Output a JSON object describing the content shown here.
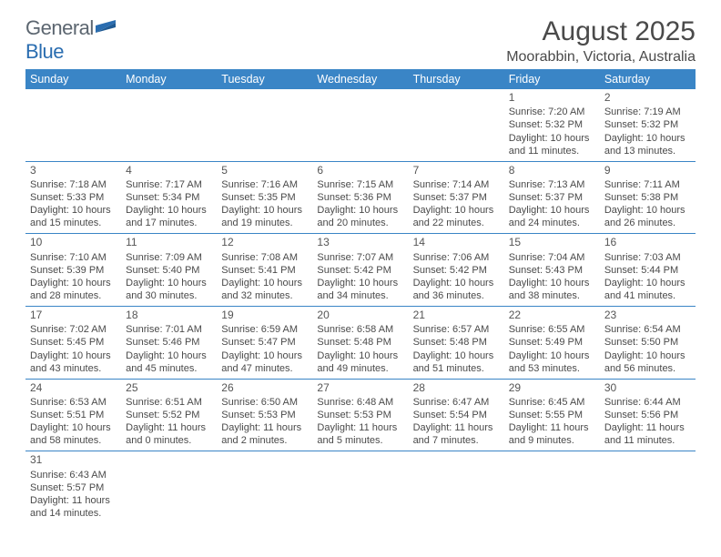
{
  "logo": {
    "text_gray": "General",
    "text_blue": "Blue",
    "flag_color": "#2a6db0"
  },
  "title": "August 2025",
  "location": "Moorabbin, Victoria, Australia",
  "header_bg": "#3a85c6",
  "header_text": "#ffffff",
  "border_color": "#3a85c6",
  "cell_text_color": "#4a4a4a",
  "weekdays": [
    "Sunday",
    "Monday",
    "Tuesday",
    "Wednesday",
    "Thursday",
    "Friday",
    "Saturday"
  ],
  "weeks": [
    [
      null,
      null,
      null,
      null,
      null,
      {
        "n": "1",
        "sunrise": "Sunrise: 7:20 AM",
        "sunset": "Sunset: 5:32 PM",
        "day1": "Daylight: 10 hours",
        "day2": "and 11 minutes."
      },
      {
        "n": "2",
        "sunrise": "Sunrise: 7:19 AM",
        "sunset": "Sunset: 5:32 PM",
        "day1": "Daylight: 10 hours",
        "day2": "and 13 minutes."
      }
    ],
    [
      {
        "n": "3",
        "sunrise": "Sunrise: 7:18 AM",
        "sunset": "Sunset: 5:33 PM",
        "day1": "Daylight: 10 hours",
        "day2": "and 15 minutes."
      },
      {
        "n": "4",
        "sunrise": "Sunrise: 7:17 AM",
        "sunset": "Sunset: 5:34 PM",
        "day1": "Daylight: 10 hours",
        "day2": "and 17 minutes."
      },
      {
        "n": "5",
        "sunrise": "Sunrise: 7:16 AM",
        "sunset": "Sunset: 5:35 PM",
        "day1": "Daylight: 10 hours",
        "day2": "and 19 minutes."
      },
      {
        "n": "6",
        "sunrise": "Sunrise: 7:15 AM",
        "sunset": "Sunset: 5:36 PM",
        "day1": "Daylight: 10 hours",
        "day2": "and 20 minutes."
      },
      {
        "n": "7",
        "sunrise": "Sunrise: 7:14 AM",
        "sunset": "Sunset: 5:37 PM",
        "day1": "Daylight: 10 hours",
        "day2": "and 22 minutes."
      },
      {
        "n": "8",
        "sunrise": "Sunrise: 7:13 AM",
        "sunset": "Sunset: 5:37 PM",
        "day1": "Daylight: 10 hours",
        "day2": "and 24 minutes."
      },
      {
        "n": "9",
        "sunrise": "Sunrise: 7:11 AM",
        "sunset": "Sunset: 5:38 PM",
        "day1": "Daylight: 10 hours",
        "day2": "and 26 minutes."
      }
    ],
    [
      {
        "n": "10",
        "sunrise": "Sunrise: 7:10 AM",
        "sunset": "Sunset: 5:39 PM",
        "day1": "Daylight: 10 hours",
        "day2": "and 28 minutes."
      },
      {
        "n": "11",
        "sunrise": "Sunrise: 7:09 AM",
        "sunset": "Sunset: 5:40 PM",
        "day1": "Daylight: 10 hours",
        "day2": "and 30 minutes."
      },
      {
        "n": "12",
        "sunrise": "Sunrise: 7:08 AM",
        "sunset": "Sunset: 5:41 PM",
        "day1": "Daylight: 10 hours",
        "day2": "and 32 minutes."
      },
      {
        "n": "13",
        "sunrise": "Sunrise: 7:07 AM",
        "sunset": "Sunset: 5:42 PM",
        "day1": "Daylight: 10 hours",
        "day2": "and 34 minutes."
      },
      {
        "n": "14",
        "sunrise": "Sunrise: 7:06 AM",
        "sunset": "Sunset: 5:42 PM",
        "day1": "Daylight: 10 hours",
        "day2": "and 36 minutes."
      },
      {
        "n": "15",
        "sunrise": "Sunrise: 7:04 AM",
        "sunset": "Sunset: 5:43 PM",
        "day1": "Daylight: 10 hours",
        "day2": "and 38 minutes."
      },
      {
        "n": "16",
        "sunrise": "Sunrise: 7:03 AM",
        "sunset": "Sunset: 5:44 PM",
        "day1": "Daylight: 10 hours",
        "day2": "and 41 minutes."
      }
    ],
    [
      {
        "n": "17",
        "sunrise": "Sunrise: 7:02 AM",
        "sunset": "Sunset: 5:45 PM",
        "day1": "Daylight: 10 hours",
        "day2": "and 43 minutes."
      },
      {
        "n": "18",
        "sunrise": "Sunrise: 7:01 AM",
        "sunset": "Sunset: 5:46 PM",
        "day1": "Daylight: 10 hours",
        "day2": "and 45 minutes."
      },
      {
        "n": "19",
        "sunrise": "Sunrise: 6:59 AM",
        "sunset": "Sunset: 5:47 PM",
        "day1": "Daylight: 10 hours",
        "day2": "and 47 minutes."
      },
      {
        "n": "20",
        "sunrise": "Sunrise: 6:58 AM",
        "sunset": "Sunset: 5:48 PM",
        "day1": "Daylight: 10 hours",
        "day2": "and 49 minutes."
      },
      {
        "n": "21",
        "sunrise": "Sunrise: 6:57 AM",
        "sunset": "Sunset: 5:48 PM",
        "day1": "Daylight: 10 hours",
        "day2": "and 51 minutes."
      },
      {
        "n": "22",
        "sunrise": "Sunrise: 6:55 AM",
        "sunset": "Sunset: 5:49 PM",
        "day1": "Daylight: 10 hours",
        "day2": "and 53 minutes."
      },
      {
        "n": "23",
        "sunrise": "Sunrise: 6:54 AM",
        "sunset": "Sunset: 5:50 PM",
        "day1": "Daylight: 10 hours",
        "day2": "and 56 minutes."
      }
    ],
    [
      {
        "n": "24",
        "sunrise": "Sunrise: 6:53 AM",
        "sunset": "Sunset: 5:51 PM",
        "day1": "Daylight: 10 hours",
        "day2": "and 58 minutes."
      },
      {
        "n": "25",
        "sunrise": "Sunrise: 6:51 AM",
        "sunset": "Sunset: 5:52 PM",
        "day1": "Daylight: 11 hours",
        "day2": "and 0 minutes."
      },
      {
        "n": "26",
        "sunrise": "Sunrise: 6:50 AM",
        "sunset": "Sunset: 5:53 PM",
        "day1": "Daylight: 11 hours",
        "day2": "and 2 minutes."
      },
      {
        "n": "27",
        "sunrise": "Sunrise: 6:48 AM",
        "sunset": "Sunset: 5:53 PM",
        "day1": "Daylight: 11 hours",
        "day2": "and 5 minutes."
      },
      {
        "n": "28",
        "sunrise": "Sunrise: 6:47 AM",
        "sunset": "Sunset: 5:54 PM",
        "day1": "Daylight: 11 hours",
        "day2": "and 7 minutes."
      },
      {
        "n": "29",
        "sunrise": "Sunrise: 6:45 AM",
        "sunset": "Sunset: 5:55 PM",
        "day1": "Daylight: 11 hours",
        "day2": "and 9 minutes."
      },
      {
        "n": "30",
        "sunrise": "Sunrise: 6:44 AM",
        "sunset": "Sunset: 5:56 PM",
        "day1": "Daylight: 11 hours",
        "day2": "and 11 minutes."
      }
    ],
    [
      {
        "n": "31",
        "sunrise": "Sunrise: 6:43 AM",
        "sunset": "Sunset: 5:57 PM",
        "day1": "Daylight: 11 hours",
        "day2": "and 14 minutes."
      },
      null,
      null,
      null,
      null,
      null,
      null
    ]
  ]
}
